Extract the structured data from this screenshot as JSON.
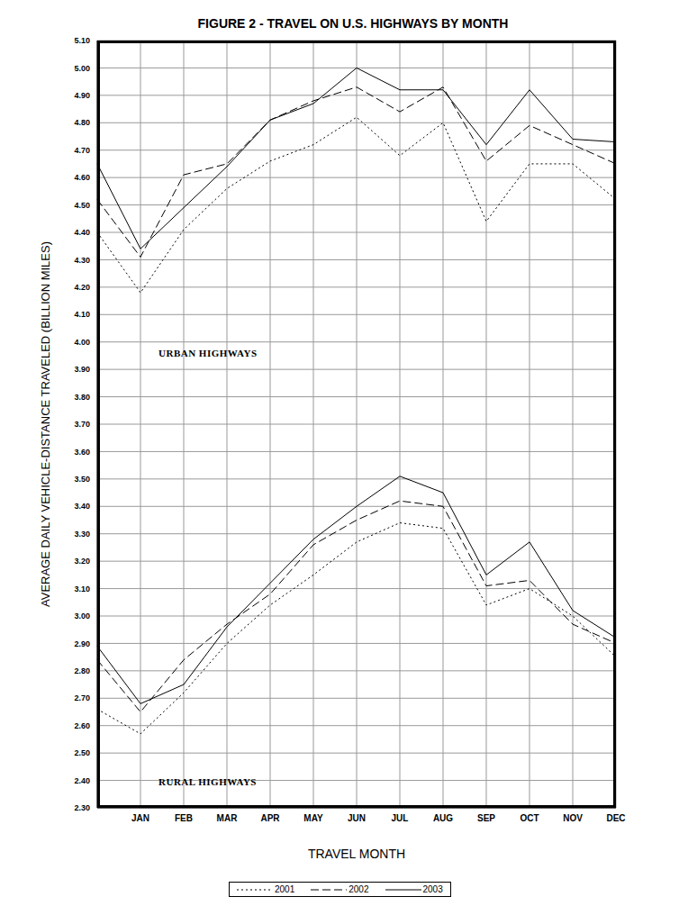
{
  "chart_data": {
    "type": "line",
    "title": "FIGURE 2 - TRAVEL ON U.S. HIGHWAYS BY MONTH",
    "x_label": "TRAVEL MONTH",
    "y_label": "AVERAGE DAILY VEHICLE-DISTANCE TRAVELED (BILLION MILES)",
    "annotations": [
      "URBAN HIGHWAYS",
      "RURAL HIGHWAYS"
    ],
    "categories": [
      null,
      "JAN",
      "FEB",
      "MAR",
      "APR",
      "MAY",
      "JUN",
      "JUL",
      "AUG",
      "SEP",
      "OCT",
      "NOV",
      "DEC"
    ],
    "series": [
      {
        "name": "2001",
        "color": "#000000",
        "line_style": "dotted",
        "values": [
          4.4,
          4.18,
          4.41,
          4.56,
          4.66,
          4.72,
          4.82,
          4.68,
          4.8,
          4.44,
          4.65,
          4.65,
          4.52
        ]
      },
      {
        "name": "2002",
        "color": "#000000",
        "line_style": "dashed",
        "values": [
          4.52,
          4.31,
          4.61,
          4.65,
          4.81,
          4.88,
          4.93,
          4.84,
          4.93,
          4.66,
          4.79,
          4.72,
          4.65
        ]
      },
      {
        "name": "2003",
        "color": "#000000",
        "line_style": "solid",
        "values": [
          4.65,
          4.34,
          4.49,
          4.64,
          4.81,
          4.87,
          5.0,
          4.92,
          4.92,
          4.72,
          4.92,
          4.74,
          4.73
        ]
      },
      {
        "name": "2001",
        "color": "#000000",
        "line_style": "dotted",
        "values": [
          2.66,
          2.57,
          2.72,
          2.9,
          3.04,
          3.15,
          3.27,
          3.34,
          3.32,
          3.04,
          3.1,
          3.0,
          2.85
        ]
      },
      {
        "name": "2002",
        "color": "#000000",
        "line_style": "dashed",
        "values": [
          2.84,
          2.65,
          2.84,
          2.97,
          3.08,
          3.26,
          3.35,
          3.42,
          3.4,
          3.11,
          3.13,
          2.97,
          2.9
        ]
      },
      {
        "name": "2003",
        "color": "#000000",
        "line_style": "solid",
        "values": [
          2.89,
          2.68,
          2.75,
          2.96,
          3.12,
          3.28,
          3.4,
          3.51,
          3.45,
          3.15,
          3.27,
          3.02,
          2.92
        ]
      }
    ],
    "ylim": [
      2.3,
      5.1
    ],
    "yticks": [
      {
        "value": 2.3,
        "label": "2.30"
      },
      {
        "value": 2.4,
        "label": "2.40"
      },
      {
        "value": 2.5,
        "label": "2.50"
      },
      {
        "value": 2.6,
        "label": "2.60"
      },
      {
        "value": 2.7,
        "label": "2.70"
      },
      {
        "value": 2.8,
        "label": "2.80"
      },
      {
        "value": 2.9,
        "label": "2.90"
      },
      {
        "value": 3.0,
        "label": "3.00"
      },
      {
        "value": 3.1,
        "label": "3.10"
      },
      {
        "value": 3.2,
        "label": "3.20"
      },
      {
        "value": 3.3,
        "label": "3.30"
      },
      {
        "value": 3.4,
        "label": "3.40"
      },
      {
        "value": 3.5,
        "label": "3.50"
      },
      {
        "value": 3.6,
        "label": "3.60"
      },
      {
        "value": 3.7,
        "label": "3.70"
      },
      {
        "value": 3.8,
        "label": "3.80"
      },
      {
        "value": 3.9,
        "label": "3.90"
      },
      {
        "value": 4.0,
        "label": "4.00"
      },
      {
        "value": 4.1,
        "label": "4.10"
      },
      {
        "value": 4.2,
        "label": "4.20"
      },
      {
        "value": 4.3,
        "label": "4.30"
      },
      {
        "value": 4.4,
        "label": "4.40"
      },
      {
        "value": 4.5,
        "label": "4.50"
      },
      {
        "value": 4.6,
        "label": "4.60"
      },
      {
        "value": 4.7,
        "label": "4.70"
      },
      {
        "value": 4.8,
        "label": "4.80"
      },
      {
        "value": 4.9,
        "label": "4.90"
      },
      {
        "value": 5.0,
        "label": "5.00"
      },
      {
        "value": 5.1,
        "label": "5.10"
      }
    ],
    "grid": true,
    "legend": "bottom"
  }
}
